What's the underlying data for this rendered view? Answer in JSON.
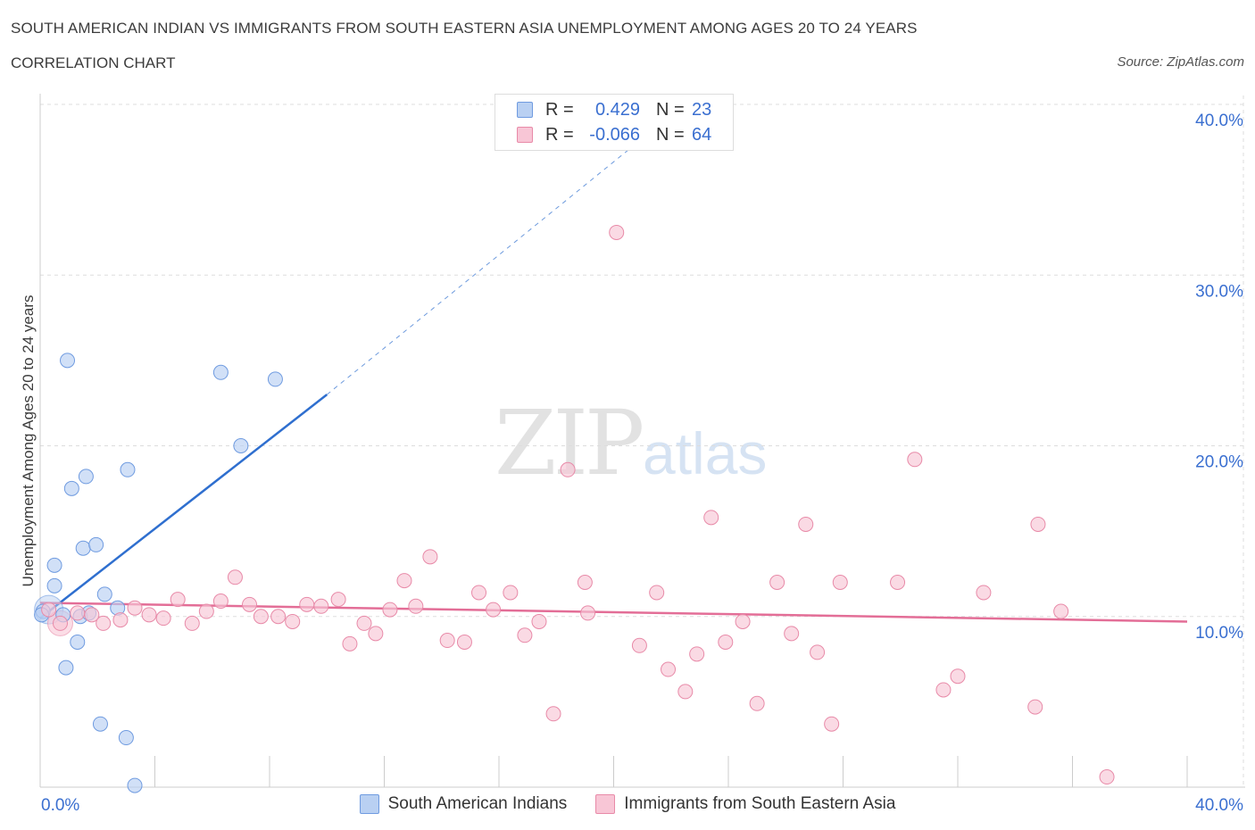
{
  "header": {
    "title": "SOUTH AMERICAN INDIAN VS IMMIGRANTS FROM SOUTH EASTERN ASIA UNEMPLOYMENT AMONG AGES 20 TO 24 YEARS",
    "subtitle": "CORRELATION CHART",
    "source": "Source: ZipAtlas.com"
  },
  "watermark": {
    "zip": "ZIP",
    "atlas": "atlas"
  },
  "legend": {
    "series1": {
      "r_label": "R =",
      "r_value": "0.429",
      "n_label": "N =",
      "n_value": "23"
    },
    "series2": {
      "r_label": "R =",
      "r_value": "-0.066",
      "n_label": "N =",
      "n_value": "64"
    }
  },
  "colors": {
    "blue_fill": "#b9d0f2",
    "blue_stroke": "#6f9be0",
    "blue_line": "#2f6fcf",
    "pink_fill": "#f8c6d6",
    "pink_stroke": "#e88aa8",
    "pink_line": "#e36e97",
    "axis_text": "#3a6fd0",
    "grid": "#dddddd"
  },
  "chart_data": {
    "type": "scatter",
    "title": "SOUTH AMERICAN INDIAN VS IMMIGRANTS FROM SOUTH EASTERN ASIA UNEMPLOYMENT AMONG AGES 20 TO 24 YEARS",
    "xlabel": "",
    "ylabel": "Unemployment Among Ages 20 to 24 years",
    "xlim": [
      0,
      40
    ],
    "ylim": [
      0,
      40
    ],
    "x_tick_labels": [
      "0.0%",
      "40.0%"
    ],
    "y_ticks": [
      10,
      20,
      30,
      40
    ],
    "y_tick_labels": [
      "10.0%",
      "20.0%",
      "30.0%",
      "40.0%"
    ],
    "grid": true,
    "legend_position": "bottom",
    "series": [
      {
        "name": "South American Indians",
        "color": "#6f9be0",
        "points": [
          [
            0.1,
            10.3
          ],
          [
            0.5,
            11.8
          ],
          [
            0.5,
            13.0
          ],
          [
            0.8,
            10.1
          ],
          [
            0.9,
            7.0
          ],
          [
            0.95,
            25.0
          ],
          [
            1.1,
            17.5
          ],
          [
            1.3,
            8.5
          ],
          [
            1.4,
            10.0
          ],
          [
            1.5,
            14.0
          ],
          [
            1.6,
            18.2
          ],
          [
            1.7,
            10.2
          ],
          [
            1.95,
            14.2
          ],
          [
            2.1,
            3.7
          ],
          [
            2.25,
            11.3
          ],
          [
            2.7,
            10.5
          ],
          [
            3.0,
            2.9
          ],
          [
            3.05,
            18.6
          ],
          [
            3.3,
            0.1
          ],
          [
            6.3,
            24.3
          ],
          [
            7.0,
            20.0
          ],
          [
            8.2,
            23.9
          ],
          [
            0.05,
            10.1
          ]
        ],
        "trend": {
          "x": [
            0,
            10
          ],
          "y": [
            9.9,
            23.0
          ],
          "dashed_extension_to": [
            21,
            38
          ]
        }
      },
      {
        "name": "Immigrants from South Eastern Asia",
        "color": "#e88aa8",
        "points": [
          [
            0.3,
            10.4
          ],
          [
            0.7,
            9.6
          ],
          [
            1.3,
            10.2
          ],
          [
            1.8,
            10.1
          ],
          [
            2.2,
            9.6
          ],
          [
            2.8,
            9.8
          ],
          [
            3.3,
            10.5
          ],
          [
            3.8,
            10.1
          ],
          [
            4.3,
            9.9
          ],
          [
            4.8,
            11.0
          ],
          [
            5.3,
            9.6
          ],
          [
            5.8,
            10.3
          ],
          [
            6.3,
            10.9
          ],
          [
            6.8,
            12.3
          ],
          [
            7.3,
            10.7
          ],
          [
            7.7,
            10.0
          ],
          [
            8.3,
            10.0
          ],
          [
            8.8,
            9.7
          ],
          [
            9.3,
            10.7
          ],
          [
            9.8,
            10.6
          ],
          [
            10.4,
            11.0
          ],
          [
            10.8,
            8.4
          ],
          [
            11.3,
            9.6
          ],
          [
            11.7,
            9.0
          ],
          [
            12.2,
            10.4
          ],
          [
            12.7,
            12.1
          ],
          [
            13.1,
            10.6
          ],
          [
            13.6,
            13.5
          ],
          [
            14.2,
            8.6
          ],
          [
            14.8,
            8.5
          ],
          [
            15.3,
            11.4
          ],
          [
            15.8,
            10.4
          ],
          [
            16.4,
            11.4
          ],
          [
            16.9,
            8.9
          ],
          [
            17.4,
            9.7
          ],
          [
            17.9,
            4.3
          ],
          [
            18.4,
            18.6
          ],
          [
            19.0,
            12.0
          ],
          [
            19.1,
            10.2
          ],
          [
            20.1,
            32.5
          ],
          [
            20.9,
            8.3
          ],
          [
            21.5,
            11.4
          ],
          [
            21.9,
            6.9
          ],
          [
            22.5,
            5.6
          ],
          [
            22.9,
            7.8
          ],
          [
            23.4,
            15.8
          ],
          [
            23.9,
            8.5
          ],
          [
            24.5,
            9.7
          ],
          [
            25.0,
            4.9
          ],
          [
            25.7,
            12.0
          ],
          [
            26.2,
            9.0
          ],
          [
            26.7,
            15.4
          ],
          [
            27.1,
            7.9
          ],
          [
            27.6,
            3.7
          ],
          [
            27.9,
            12.0
          ],
          [
            29.9,
            12.0
          ],
          [
            30.5,
            19.2
          ],
          [
            31.5,
            5.7
          ],
          [
            32.0,
            6.5
          ],
          [
            32.9,
            11.4
          ],
          [
            34.8,
            15.4
          ],
          [
            34.7,
            4.7
          ],
          [
            35.6,
            10.3
          ],
          [
            37.2,
            0.6
          ]
        ],
        "trend": {
          "x": [
            0,
            40
          ],
          "y": [
            10.8,
            9.7
          ]
        }
      }
    ]
  }
}
